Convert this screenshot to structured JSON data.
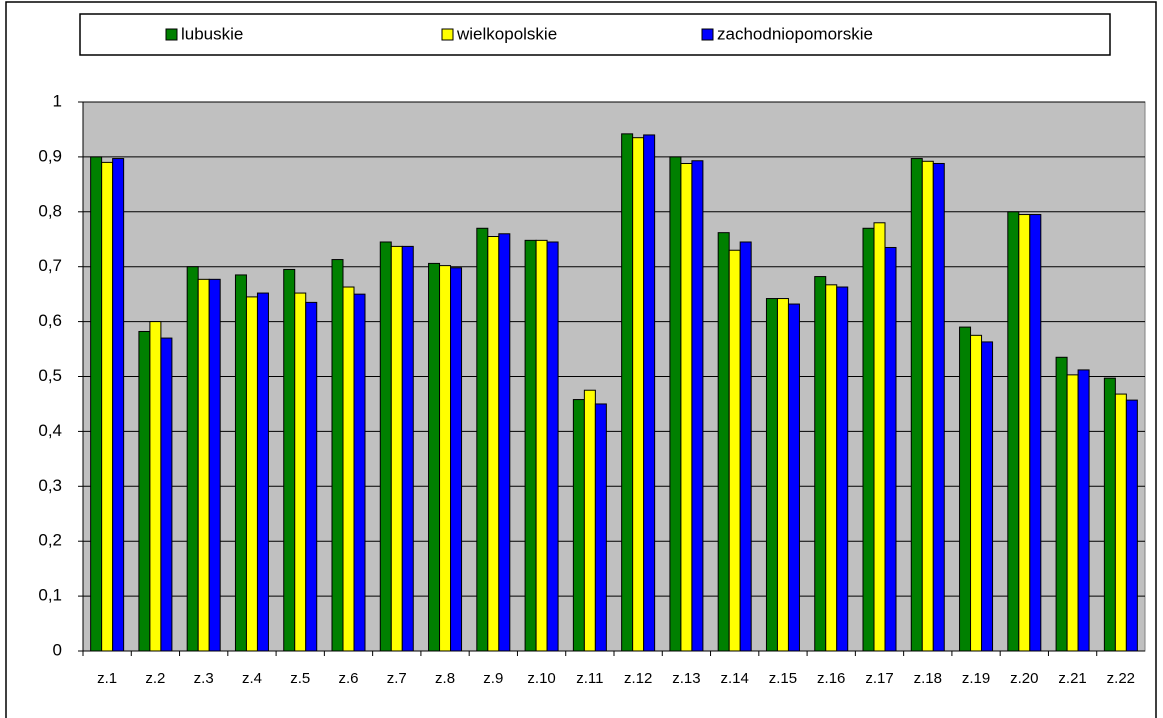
{
  "chart_data": {
    "type": "bar",
    "categories": [
      "z.1",
      "z.2",
      "z.3",
      "z.4",
      "z.5",
      "z.6",
      "z.7",
      "z.8",
      "z.9",
      "z.10",
      "z.11",
      "z.12",
      "z.13",
      "z.14",
      "z.15",
      "z.16",
      "z.17",
      "z.18",
      "z.19",
      "z.20",
      "z.21",
      "z.22"
    ],
    "series": [
      {
        "name": "lubuskie",
        "color": "#008000",
        "values": [
          0.9,
          0.582,
          0.7,
          0.685,
          0.695,
          0.713,
          0.745,
          0.706,
          0.77,
          0.748,
          0.458,
          0.942,
          0.9,
          0.762,
          0.642,
          0.682,
          0.77,
          0.897,
          0.59,
          0.8,
          0.535,
          0.497
        ]
      },
      {
        "name": "wielkopolskie",
        "color": "#ffff00",
        "values": [
          0.89,
          0.6,
          0.677,
          0.645,
          0.652,
          0.663,
          0.737,
          0.702,
          0.755,
          0.748,
          0.475,
          0.935,
          0.888,
          0.73,
          0.642,
          0.667,
          0.78,
          0.892,
          0.575,
          0.795,
          0.503,
          0.468
        ]
      },
      {
        "name": "zachodniopomorskie",
        "color": "#0000ff",
        "values": [
          0.897,
          0.57,
          0.677,
          0.652,
          0.635,
          0.65,
          0.737,
          0.698,
          0.76,
          0.745,
          0.45,
          0.94,
          0.893,
          0.745,
          0.632,
          0.663,
          0.735,
          0.888,
          0.563,
          0.795,
          0.512,
          0.457
        ]
      }
    ],
    "ylim": [
      0,
      1
    ],
    "yticks": [
      0,
      {
        "value": 0.1,
        "label": "0,1"
      },
      {
        "value": 0.2,
        "label": "0,2"
      },
      {
        "value": 0.3,
        "label": "0,3"
      },
      {
        "value": 0.4,
        "label": "0,4"
      },
      {
        "value": 0.5,
        "label": "0,5"
      },
      {
        "value": 0.6,
        "label": "0,6"
      },
      {
        "value": 0.7,
        "label": "0,7"
      },
      {
        "value": 0.8,
        "label": "0,8"
      },
      {
        "value": 0.9,
        "label": "0,9"
      },
      1
    ],
    "grid": true,
    "legend": "top",
    "plot_background": "#c0c0c0"
  }
}
